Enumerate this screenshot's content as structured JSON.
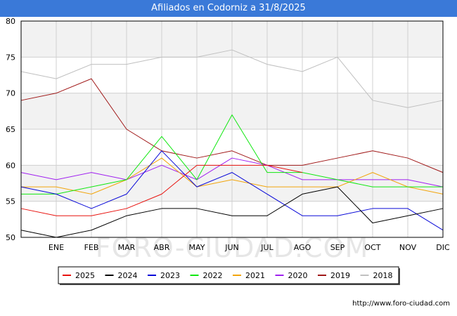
{
  "title": "Afiliados en Codorniz a 31/8/2025",
  "footer_url": "http://www.foro-ciudad.com",
  "watermark": "FORO-CIUDAD.COM",
  "colors": {
    "title_bg": "#3a79d8",
    "band": "#f2f2f2",
    "grid": "#d0d0d0"
  },
  "chart_data": {
    "type": "line",
    "title": "Afiliados en Codorniz a 31/8/2025",
    "xlabel": "",
    "ylabel": "",
    "ylim": [
      50,
      80
    ],
    "yticks": [
      50,
      55,
      60,
      65,
      70,
      75,
      80
    ],
    "categories": [
      "",
      "ENE",
      "FEB",
      "MAR",
      "ABR",
      "MAY",
      "JUN",
      "JUL",
      "AGO",
      "SEP",
      "OCT",
      "NOV",
      "DIC"
    ],
    "legend_position": "bottom",
    "series": [
      {
        "name": "2025",
        "color": "#e8120e",
        "values": [
          54,
          53,
          53,
          54,
          56,
          60,
          60,
          60,
          59,
          null,
          null,
          null,
          null
        ]
      },
      {
        "name": "2024",
        "color": "#000000",
        "values": [
          51,
          50,
          51,
          53,
          54,
          54,
          53,
          53,
          56,
          57,
          52,
          53,
          54
        ]
      },
      {
        "name": "2023",
        "color": "#0a0ad8",
        "values": [
          57,
          56,
          54,
          56,
          62,
          57,
          59,
          56,
          53,
          53,
          54,
          54,
          51
        ]
      },
      {
        "name": "2022",
        "color": "#11e811",
        "values": [
          56,
          56,
          57,
          58,
          64,
          58,
          67,
          59,
          59,
          58,
          57,
          57,
          57
        ]
      },
      {
        "name": "2021",
        "color": "#f2a50c",
        "values": [
          57,
          57,
          56,
          58,
          61,
          57,
          58,
          57,
          57,
          57,
          59,
          57,
          56
        ]
      },
      {
        "name": "2020",
        "color": "#a020f0",
        "values": [
          59,
          58,
          59,
          58,
          60,
          58,
          61,
          60,
          58,
          58,
          58,
          58,
          57
        ]
      },
      {
        "name": "2019",
        "color": "#a01818",
        "values": [
          69,
          70,
          72,
          65,
          62,
          61,
          62,
          60,
          60,
          61,
          62,
          61,
          59
        ]
      },
      {
        "name": "2018",
        "color": "#c0c0c0",
        "values": [
          73,
          72,
          74,
          74,
          75,
          75,
          76,
          74,
          73,
          75,
          69,
          68,
          69
        ]
      }
    ]
  }
}
